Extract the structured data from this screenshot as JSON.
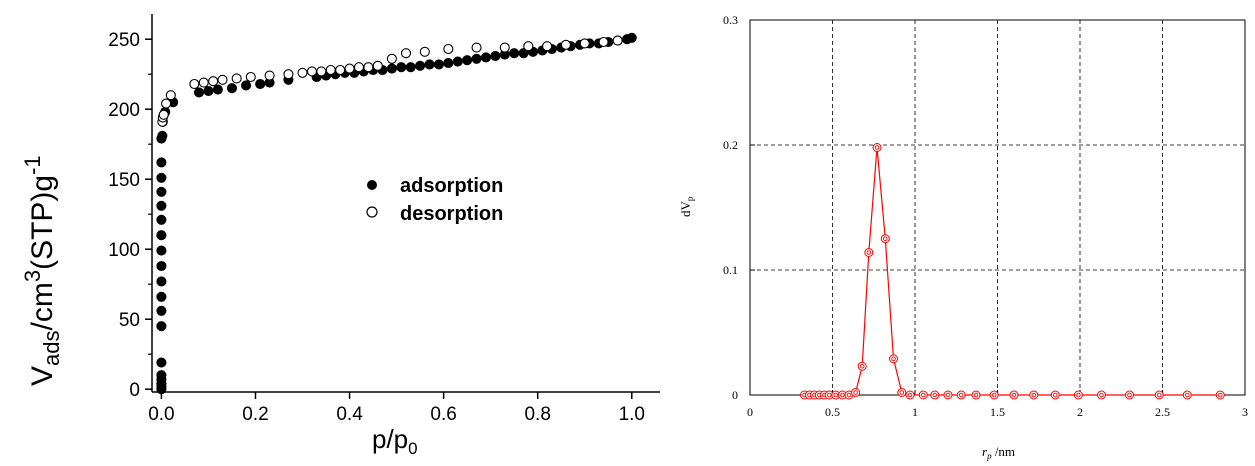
{
  "chart_data": [
    {
      "type": "scatter",
      "title": "",
      "xlabel": "p/p",
      "xlabel_sub": "0",
      "ylabel_parts": {
        "v": "V",
        "ads_sub": "ads",
        "mid": "/cm",
        "exp3": "3",
        "stp": "(STP)g",
        "exp_neg1": "-1"
      },
      "xlim": [
        -0.02,
        1.06
      ],
      "ylim": [
        -2,
        268
      ],
      "xticks": [
        0.0,
        0.2,
        0.4,
        0.6,
        0.8,
        1.0
      ],
      "xtick_labels": [
        "0.0",
        "0.2",
        "0.4",
        "0.6",
        "0.8",
        "1.0"
      ],
      "yticks": [
        0,
        50,
        100,
        150,
        200,
        250
      ],
      "ytick_labels": [
        "0",
        "50",
        "100",
        "150",
        "200",
        "250"
      ],
      "grid": false,
      "legend_position": "center-right",
      "series": [
        {
          "name": "adsorption",
          "marker": "filled-circle",
          "color": "#000000",
          "points": [
            [
              0.0,
              0
            ],
            [
              0.0,
              2
            ],
            [
              0.0,
              4
            ],
            [
              0.0,
              7
            ],
            [
              0.0,
              10
            ],
            [
              0.0,
              19
            ],
            [
              0.0,
              45
            ],
            [
              0.0,
              56
            ],
            [
              0.0,
              66
            ],
            [
              0.0,
              77
            ],
            [
              0.0,
              88
            ],
            [
              0.0,
              99
            ],
            [
              0.0,
              110
            ],
            [
              0.0,
              121
            ],
            [
              0.0,
              131
            ],
            [
              0.0,
              141
            ],
            [
              0.0,
              151
            ],
            [
              0.0,
              162
            ],
            [
              0.0,
              179
            ],
            [
              0.002,
              181
            ],
            [
              0.003,
              191
            ],
            [
              0.005,
              196
            ],
            [
              0.008,
              198
            ],
            [
              0.025,
              205
            ],
            [
              0.08,
              212
            ],
            [
              0.1,
              213
            ],
            [
              0.12,
              214
            ],
            [
              0.15,
              215
            ],
            [
              0.18,
              217
            ],
            [
              0.21,
              218
            ],
            [
              0.23,
              219
            ],
            [
              0.27,
              221
            ],
            [
              0.33,
              223
            ],
            [
              0.35,
              224
            ],
            [
              0.37,
              225
            ],
            [
              0.39,
              226
            ],
            [
              0.41,
              226
            ],
            [
              0.43,
              227
            ],
            [
              0.45,
              228
            ],
            [
              0.47,
              228
            ],
            [
              0.49,
              229
            ],
            [
              0.51,
              230
            ],
            [
              0.53,
              230
            ],
            [
              0.55,
              231
            ],
            [
              0.57,
              232
            ],
            [
              0.59,
              232
            ],
            [
              0.61,
              233
            ],
            [
              0.63,
              234
            ],
            [
              0.65,
              235
            ],
            [
              0.67,
              236
            ],
            [
              0.69,
              237
            ],
            [
              0.71,
              238
            ],
            [
              0.73,
              239
            ],
            [
              0.75,
              240
            ],
            [
              0.77,
              240
            ],
            [
              0.79,
              241
            ],
            [
              0.81,
              242
            ],
            [
              0.83,
              243
            ],
            [
              0.85,
              244
            ],
            [
              0.87,
              245
            ],
            [
              0.89,
              246
            ],
            [
              0.91,
              247
            ],
            [
              0.93,
              247
            ],
            [
              0.95,
              248
            ],
            [
              0.97,
              249
            ],
            [
              0.99,
              250
            ],
            [
              1.0,
              251
            ]
          ]
        },
        {
          "name": "desorption",
          "marker": "open-circle",
          "color": "#000000",
          "points": [
            [
              0.002,
              191
            ],
            [
              0.003,
              194
            ],
            [
              0.005,
              196
            ],
            [
              0.01,
              204
            ],
            [
              0.02,
              210
            ],
            [
              0.07,
              218
            ],
            [
              0.09,
              219
            ],
            [
              0.11,
              220
            ],
            [
              0.13,
              221
            ],
            [
              0.16,
              222
            ],
            [
              0.19,
              223
            ],
            [
              0.23,
              224
            ],
            [
              0.27,
              225
            ],
            [
              0.3,
              226
            ],
            [
              0.32,
              227
            ],
            [
              0.34,
              227
            ],
            [
              0.36,
              228
            ],
            [
              0.38,
              228
            ],
            [
              0.4,
              229
            ],
            [
              0.42,
              230
            ],
            [
              0.44,
              230
            ],
            [
              0.46,
              231
            ],
            [
              0.49,
              236
            ],
            [
              0.52,
              240
            ],
            [
              0.56,
              241
            ],
            [
              0.61,
              243
            ],
            [
              0.67,
              244
            ],
            [
              0.73,
              244
            ],
            [
              0.78,
              245
            ],
            [
              0.82,
              245
            ],
            [
              0.86,
              246
            ],
            [
              0.9,
              247
            ],
            [
              0.94,
              248
            ],
            [
              0.97,
              249
            ]
          ]
        }
      ]
    },
    {
      "type": "line",
      "title": "",
      "xlabel": "r",
      "xlabel_sub": "p",
      "xlabel_unit": " /nm",
      "ylabel": "dV",
      "ylabel_sub": "p",
      "xlim": [
        0,
        3
      ],
      "ylim": [
        0,
        0.3
      ],
      "xticks": [
        0,
        0.5,
        1,
        1.5,
        2,
        2.5,
        3
      ],
      "xtick_labels": [
        "0",
        "0.5",
        "1",
        "1.5",
        "2",
        "2.5",
        "3"
      ],
      "yticks": [
        0,
        0.1,
        0.2,
        0.3
      ],
      "ytick_labels": [
        "0",
        "0.1",
        "0.2",
        "0.3"
      ],
      "grid": true,
      "grid_style": "dashed",
      "series": [
        {
          "marker": "double-circle",
          "color": "#ff0000",
          "x": [
            0.33,
            0.36,
            0.39,
            0.42,
            0.45,
            0.48,
            0.52,
            0.56,
            0.6,
            0.64,
            0.68,
            0.72,
            0.77,
            0.82,
            0.87,
            0.92,
            0.97,
            1.05,
            1.12,
            1.2,
            1.28,
            1.37,
            1.48,
            1.6,
            1.72,
            1.85,
            1.99,
            2.13,
            2.3,
            2.48,
            2.65,
            2.85
          ],
          "y": [
            0,
            0,
            0,
            0,
            0,
            0,
            0,
            0,
            0,
            0.002,
            0.023,
            0.114,
            0.198,
            0.125,
            0.029,
            0.002,
            0,
            0,
            0,
            0,
            0,
            0,
            0,
            0,
            0,
            0,
            0,
            0,
            0,
            0,
            0,
            0
          ]
        }
      ]
    }
  ]
}
